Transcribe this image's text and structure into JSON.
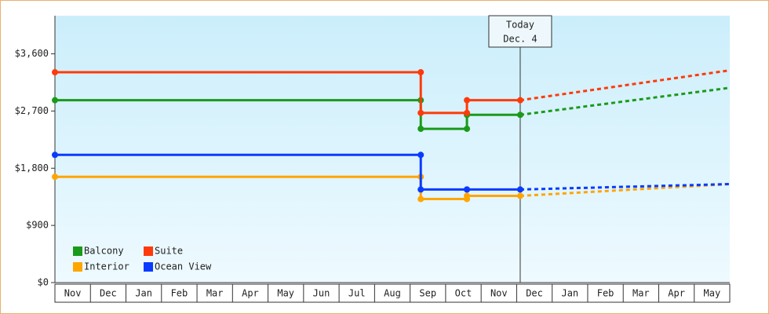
{
  "chart_data": {
    "type": "line",
    "categories": [
      "Nov",
      "Dec",
      "Jan",
      "Feb",
      "Mar",
      "Apr",
      "May",
      "Jun",
      "Jul",
      "Aug",
      "Sep",
      "Oct",
      "Nov",
      "Dec",
      "Jan",
      "Feb",
      "Mar",
      "Apr",
      "May"
    ],
    "x": [
      0,
      10.3,
      10.3,
      11.6,
      11.6,
      13.1,
      19
    ],
    "xlim": [
      0,
      19
    ],
    "series": [
      {
        "name": "Balcony",
        "color": "#1a9a1a",
        "values": [
          2870,
          2870,
          2420,
          2420,
          2640,
          2640,
          3065
        ]
      },
      {
        "name": "Suite",
        "color": "#ff3a0a",
        "values": [
          3310,
          3310,
          2670,
          2670,
          2870,
          2870,
          3340
        ]
      },
      {
        "name": "Interior",
        "color": "#ffa500",
        "values": [
          1665,
          1665,
          1315,
          1315,
          1365,
          1365,
          1550
        ]
      },
      {
        "name": "Ocean View",
        "color": "#0a3aff",
        "values": [
          2010,
          2010,
          1465,
          1465,
          1465,
          1465,
          1550
        ]
      }
    ],
    "ylim": [
      0,
      4200
    ],
    "yticks": [
      {
        "value": 0,
        "label": "$0"
      },
      {
        "value": 900,
        "label": "$900"
      },
      {
        "value": 1800,
        "label": "$1,800"
      },
      {
        "value": 2700,
        "label": "$2,700"
      },
      {
        "value": 3600,
        "label": "$3,600"
      }
    ],
    "today": {
      "x": 13.1,
      "label": [
        "Today",
        "Dec. 4"
      ]
    },
    "legend": "bottom-left"
  }
}
